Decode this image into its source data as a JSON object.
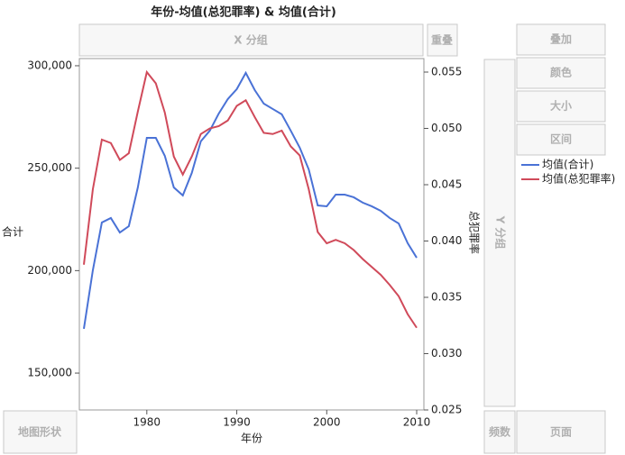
{
  "chart_data": {
    "type": "line",
    "title": "年份-均值(总犯罪率) & 均值(合计)",
    "x_label": "年份",
    "y_label": "合计",
    "y2_label": "总犯罪率",
    "x": [
      1973,
      1974,
      1975,
      1976,
      1977,
      1978,
      1979,
      1980,
      1981,
      1982,
      1983,
      1984,
      1985,
      1986,
      1987,
      1988,
      1989,
      1990,
      1991,
      1992,
      1993,
      1994,
      1995,
      1996,
      1997,
      1998,
      1999,
      2000,
      2001,
      2002,
      2003,
      2004,
      2005,
      2006,
      2007,
      2008,
      2009,
      2010
    ],
    "series": [
      {
        "name": "均值(合计)",
        "color": "#4a72d6",
        "axis": "y",
        "values": [
          171600,
          200200,
          223500,
          225700,
          218600,
          221700,
          240600,
          264800,
          264800,
          256000,
          240600,
          236700,
          247700,
          263100,
          268300,
          276700,
          283700,
          288600,
          296500,
          288100,
          281500,
          278900,
          276300,
          268300,
          260000,
          249400,
          231800,
          231400,
          237100,
          237100,
          235800,
          233200,
          231400,
          229200,
          225700,
          223000,
          213400,
          206300
        ]
      },
      {
        "name": "均值(总犯罪率)",
        "color": "#d04a5a",
        "axis": "y2",
        "values": [
          0.0379,
          0.0446,
          0.049,
          0.0487,
          0.0472,
          0.0478,
          0.0515,
          0.055,
          0.054,
          0.0514,
          0.0475,
          0.0459,
          0.0475,
          0.0495,
          0.05,
          0.0502,
          0.0507,
          0.052,
          0.0525,
          0.051,
          0.0496,
          0.0495,
          0.0498,
          0.0484,
          0.0476,
          0.0446,
          0.0408,
          0.0398,
          0.0401,
          0.0398,
          0.0392,
          0.0384,
          0.0377,
          0.037,
          0.0361,
          0.0351,
          0.0335,
          0.0323
        ]
      }
    ],
    "xlim": [
      1972.5,
      2010.8
    ],
    "xticks": [
      1980,
      1990,
      2000,
      2010
    ],
    "ylim": [
      132000,
      303500
    ],
    "yticks": [
      {
        "value": 150000,
        "label": "150,000"
      },
      {
        "value": 200000,
        "label": "200,000"
      },
      {
        "value": 250000,
        "label": "250,000"
      },
      {
        "value": 300000,
        "label": "300,000"
      }
    ],
    "y2lim": [
      0.025,
      0.0562
    ],
    "y2ticks": [
      0.025,
      {
        "value": 0.03,
        "label": "0.030"
      },
      0.035,
      {
        "value": 0.04,
        "label": "0.040"
      },
      0.045,
      {
        "value": 0.05,
        "label": "0.050"
      },
      0.055
    ],
    "legend": "right"
  },
  "ui": {
    "x_group": "X 分组",
    "overlap": "重叠",
    "overlay": "叠加",
    "color": "颜色",
    "size": "大小",
    "interval": "区间",
    "y_group": "Y 分组",
    "map_shape": "地图形状",
    "freq": "频数",
    "page": "页面"
  }
}
